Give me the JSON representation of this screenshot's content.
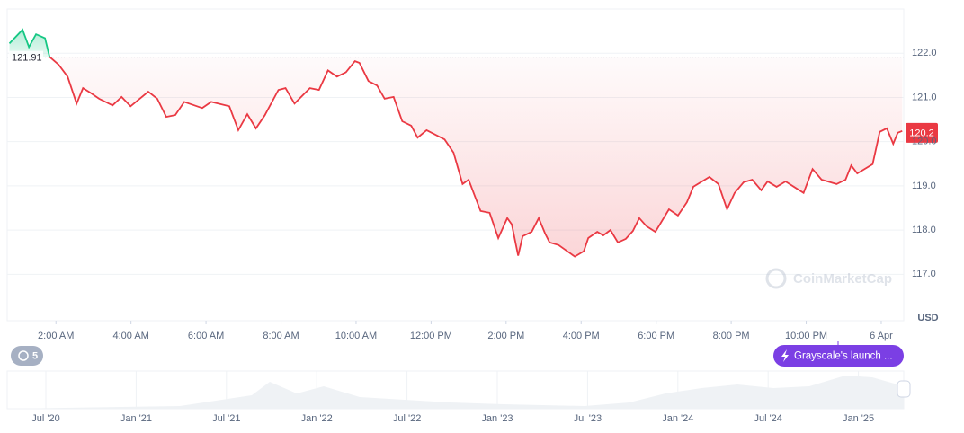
{
  "chart_data": {
    "type": "line",
    "x": [
      0.76,
      1.11,
      1.28,
      1.47,
      1.71,
      1.83,
      2.07,
      2.31,
      2.55,
      2.72,
      2.91,
      3.15,
      3.51,
      3.75,
      3.99,
      4.46,
      4.7,
      4.94,
      5.18,
      5.42,
      5.9,
      6.14,
      6.62,
      6.86,
      7.1,
      7.33,
      7.57,
      7.93,
      8.12,
      8.36,
      8.77,
      9.01,
      9.25,
      9.49,
      9.73,
      9.97,
      10.09,
      10.33,
      10.56,
      10.76,
      11.0,
      11.23,
      11.47,
      11.64,
      11.88,
      12.36,
      12.6,
      12.84,
      13.0,
      13.32,
      13.56,
      13.79,
      14.03,
      14.15,
      14.32,
      14.44,
      14.68,
      14.87,
      15.04,
      15.16,
      15.4,
      15.83,
      16.07,
      16.19,
      16.43,
      16.59,
      16.78,
      16.98,
      17.19,
      17.38,
      17.55,
      17.74,
      17.98,
      18.34,
      18.58,
      18.82,
      18.99,
      19.42,
      19.66,
      19.89,
      20.09,
      20.33,
      20.56,
      20.8,
      20.97,
      21.21,
      21.45,
      21.93,
      22.17,
      22.41,
      22.81,
      23.05,
      23.2,
      23.36,
      23.77,
      23.96,
      24.15,
      24.32,
      24.44,
      24.56
    ],
    "values": [
      122.22,
      122.53,
      122.14,
      122.43,
      122.34,
      121.92,
      121.74,
      121.47,
      120.86,
      121.21,
      121.11,
      120.97,
      120.82,
      121.01,
      120.8,
      121.13,
      120.97,
      120.56,
      120.6,
      120.9,
      120.76,
      120.9,
      120.8,
      120.26,
      120.62,
      120.3,
      120.6,
      121.17,
      121.21,
      120.86,
      121.21,
      121.17,
      121.61,
      121.47,
      121.57,
      121.82,
      121.78,
      121.37,
      121.27,
      120.97,
      121.01,
      120.46,
      120.36,
      120.09,
      120.26,
      120.05,
      119.75,
      119.04,
      119.14,
      118.43,
      118.39,
      117.82,
      118.27,
      118.13,
      117.42,
      117.86,
      117.96,
      118.27,
      117.92,
      117.72,
      117.66,
      117.4,
      117.52,
      117.82,
      117.96,
      117.88,
      118.0,
      117.72,
      117.8,
      117.98,
      118.27,
      118.09,
      117.96,
      118.47,
      118.33,
      118.63,
      118.98,
      119.2,
      119.04,
      118.47,
      118.84,
      119.08,
      119.14,
      118.9,
      119.1,
      118.98,
      119.1,
      118.84,
      119.38,
      119.14,
      119.04,
      119.14,
      119.46,
      119.28,
      119.49,
      120.22,
      120.3,
      119.95,
      120.2,
      120.24
    ],
    "color_up": "#16c784",
    "color_down": "#ea3943",
    "baseline": 121.91,
    "current_price": 120.2,
    "xlim": [
      0.7,
      24.6
    ],
    "xticks": [
      {
        "value": 2,
        "label": "2:00 AM"
      },
      {
        "value": 4,
        "label": "4:00 AM"
      },
      {
        "value": 6,
        "label": "6:00 AM"
      },
      {
        "value": 8,
        "label": "8:00 AM"
      },
      {
        "value": 10,
        "label": "10:00 AM"
      },
      {
        "value": 12,
        "label": "12:00 PM"
      },
      {
        "value": 14,
        "label": "2:00 PM"
      },
      {
        "value": 16,
        "label": "4:00 PM"
      },
      {
        "value": 18,
        "label": "6:00 PM"
      },
      {
        "value": 20,
        "label": "8:00 PM"
      },
      {
        "value": 22,
        "label": "10:00 PM"
      },
      {
        "value": 24,
        "label": "6 Apr"
      }
    ],
    "ylim": [
      115.95,
      123.0
    ],
    "yticks": [
      {
        "value": 117,
        "label": "117.0"
      },
      {
        "value": 118,
        "label": "118.0"
      },
      {
        "value": 119,
        "label": "119.0"
      },
      {
        "value": 120,
        "label": "120.0"
      },
      {
        "value": 121,
        "label": "121.0"
      },
      {
        "value": 122,
        "label": "122.0"
      }
    ],
    "y_unit": "USD",
    "grid": true,
    "watermark": "CoinMarketCap",
    "events_count": "5",
    "event": "Grayscale's launch ...",
    "navigator": {
      "labels": [
        "Jul '20",
        "Jan '21",
        "Jul '21",
        "Jan '22",
        "Jul '22",
        "Jan '23",
        "Jul '23",
        "Jan '24",
        "Jul '24",
        "Jan '25"
      ]
    }
  }
}
